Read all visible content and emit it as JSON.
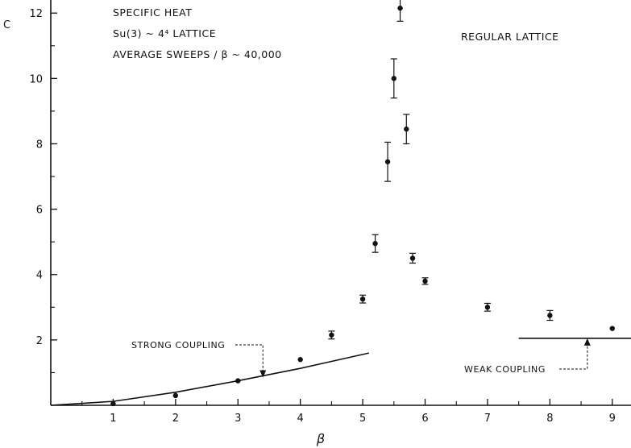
{
  "chart_data": {
    "type": "scatter",
    "title_lines": [
      "SPECIFIC HEAT",
      "Su(3) ~ 4⁴ LATTICE",
      "AVERAGE SWEEPS / β ~ 40,000"
    ],
    "subtitle": "REGULAR LATTICE",
    "xlabel": "β",
    "ylabel": "C",
    "xlim": [
      0,
      9.3
    ],
    "ylim": [
      0,
      12.4
    ],
    "x_ticks": [
      1,
      2,
      3,
      4,
      5,
      6,
      7,
      8,
      9
    ],
    "y_ticks": [
      2,
      4,
      6,
      8,
      10,
      12
    ],
    "series": [
      {
        "points": [
          {
            "x": 1.0,
            "y": 0.05,
            "err": 0
          },
          {
            "x": 2.0,
            "y": 0.3,
            "err": 0
          },
          {
            "x": 3.0,
            "y": 0.75,
            "err": 0
          },
          {
            "x": 4.0,
            "y": 1.4,
            "err": 0
          },
          {
            "x": 4.5,
            "y": 2.15,
            "err": 0.12
          },
          {
            "x": 5.0,
            "y": 3.25,
            "err": 0.12
          },
          {
            "x": 5.2,
            "y": 4.95,
            "err": 0.27
          },
          {
            "x": 5.4,
            "y": 7.45,
            "err": 0.6
          },
          {
            "x": 5.5,
            "y": 10.0,
            "err": 0.6
          },
          {
            "x": 5.6,
            "y": 12.15,
            "err": 0.4
          },
          {
            "x": 5.7,
            "y": 8.45,
            "err": 0.45
          },
          {
            "x": 5.8,
            "y": 4.5,
            "err": 0.15
          },
          {
            "x": 6.0,
            "y": 3.8,
            "err": 0.1
          },
          {
            "x": 7.0,
            "y": 3.0,
            "err": 0.12
          },
          {
            "x": 8.0,
            "y": 2.75,
            "err": 0.15
          },
          {
            "x": 9.0,
            "y": 2.35,
            "err": 0
          }
        ]
      }
    ],
    "curves": [
      {
        "label": "STRONG COUPLING",
        "points": [
          [
            0,
            0
          ],
          [
            1,
            0.12
          ],
          [
            2,
            0.4
          ],
          [
            3,
            0.75
          ],
          [
            4,
            1.13
          ],
          [
            5.1,
            1.6
          ]
        ]
      },
      {
        "label": "WEAK COUPLING",
        "points": [
          [
            7.5,
            2.05
          ],
          [
            9.3,
            2.05
          ]
        ]
      }
    ],
    "annotations": [
      {
        "text": "STRONG COUPLING",
        "arrow_to": [
          3.4,
          0.85
        ]
      },
      {
        "text": "WEAK COUPLING",
        "arrow_to": [
          8.6,
          2.05
        ]
      }
    ],
    "grid": false
  }
}
